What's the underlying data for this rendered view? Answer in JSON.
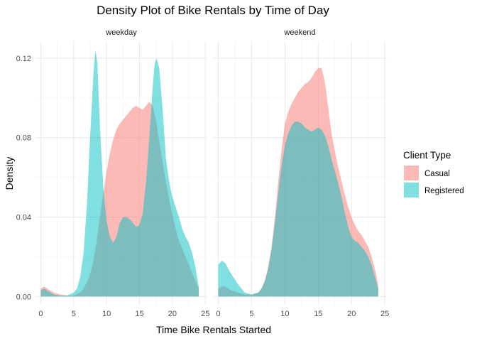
{
  "chart_data": {
    "type": "area",
    "title": "Density Plot of Bike Rentals by Time of Day",
    "xlabel": "Time Bike Rentals Started",
    "ylabel": "Density",
    "xlim": [
      -0.8,
      25.3
    ],
    "ylim": [
      -0.0045,
      0.1285
    ],
    "x_ticks": [
      0,
      5,
      10,
      15,
      20,
      25
    ],
    "y_ticks": [
      0.0,
      0.04,
      0.08,
      0.12
    ],
    "y_tick_labels": [
      "0.00",
      "0.04",
      "0.08",
      "0.12"
    ],
    "grid": true,
    "legend": {
      "title": "Client Type",
      "position": "right",
      "entries": [
        {
          "name": "Casual",
          "color": "#F8766D"
        },
        {
          "name": "Registered",
          "color": "#00BFC4"
        }
      ]
    },
    "facets": [
      {
        "label": "weekday",
        "series": [
          {
            "name": "Casual",
            "x": [
              0,
              0.5,
              1,
              1.5,
              2,
              3,
              4,
              5,
              6,
              6.5,
              7,
              7.5,
              8,
              8.5,
              9,
              9.5,
              10,
              10.5,
              11,
              11.5,
              12,
              12.5,
              13,
              13.5,
              14,
              14.5,
              15,
              15.5,
              16,
              16.5,
              17,
              17.5,
              18,
              18.5,
              19,
              19.5,
              20,
              20.5,
              21,
              21.5,
              22,
              22.5,
              23,
              23.5,
              24
            ],
            "values": [
              0.004,
              0.005,
              0.004,
              0.003,
              0.002,
              0.001,
              0.0005,
              0.0005,
              0.002,
              0.004,
              0.007,
              0.011,
              0.018,
              0.028,
              0.04,
              0.052,
              0.063,
              0.072,
              0.079,
              0.084,
              0.087,
              0.089,
              0.091,
              0.093,
              0.095,
              0.096,
              0.095,
              0.094,
              0.096,
              0.098,
              0.096,
              0.089,
              0.078,
              0.068,
              0.058,
              0.049,
              0.041,
              0.034,
              0.028,
              0.024,
              0.02,
              0.016,
              0.012,
              0.008,
              0.004
            ]
          },
          {
            "name": "Registered",
            "x": [
              0,
              0.5,
              1,
              1.5,
              2,
              3,
              4,
              5,
              5.5,
              6,
              6.5,
              7,
              7.5,
              8,
              8.3,
              8.6,
              9,
              9.5,
              10,
              10.5,
              11,
              11.5,
              12,
              12.5,
              13,
              13.5,
              14,
              14.5,
              15,
              15.5,
              16,
              16.5,
              17,
              17.3,
              17.6,
              18,
              18.5,
              19,
              19.5,
              20,
              20.5,
              21,
              21.5,
              22,
              22.5,
              23,
              23.5,
              24
            ],
            "values": [
              0.003,
              0.004,
              0.003,
              0.002,
              0.001,
              0.0005,
              0.0005,
              0.002,
              0.004,
              0.01,
              0.022,
              0.045,
              0.08,
              0.112,
              0.124,
              0.118,
              0.085,
              0.055,
              0.038,
              0.03,
              0.027,
              0.03,
              0.037,
              0.04,
              0.04,
              0.039,
              0.037,
              0.035,
              0.036,
              0.042,
              0.058,
              0.08,
              0.105,
              0.117,
              0.12,
              0.115,
              0.095,
              0.07,
              0.058,
              0.05,
              0.045,
              0.04,
              0.034,
              0.03,
              0.027,
              0.022,
              0.015,
              0.005
            ]
          }
        ]
      },
      {
        "label": "weekend",
        "series": [
          {
            "name": "Casual",
            "x": [
              0,
              0.5,
              1,
              1.5,
              2,
              3,
              4,
              5,
              6,
              6.5,
              7,
              7.5,
              8,
              8.5,
              9,
              9.5,
              10,
              10.5,
              11,
              11.5,
              12,
              12.5,
              13,
              13.5,
              14,
              14.5,
              15,
              15.5,
              16,
              16.5,
              17,
              17.5,
              18,
              18.5,
              19,
              19.5,
              20,
              20.5,
              21,
              21.5,
              22,
              22.5,
              23,
              23.5,
              24
            ],
            "values": [
              0.004,
              0.005,
              0.005,
              0.004,
              0.003,
              0.002,
              0.001,
              0.001,
              0.002,
              0.004,
              0.008,
              0.015,
              0.025,
              0.04,
              0.058,
              0.074,
              0.087,
              0.093,
              0.097,
              0.1,
              0.103,
              0.105,
              0.107,
              0.108,
              0.11,
              0.113,
              0.115,
              0.115,
              0.108,
              0.095,
              0.082,
              0.073,
              0.065,
              0.058,
              0.051,
              0.045,
              0.04,
              0.036,
              0.033,
              0.031,
              0.028,
              0.025,
              0.02,
              0.014,
              0.006
            ]
          },
          {
            "name": "Registered",
            "x": [
              0,
              0.5,
              1,
              1.5,
              2,
              3,
              4,
              5,
              6,
              6.5,
              7,
              7.5,
              8,
              8.5,
              9,
              9.5,
              10,
              10.5,
              11,
              11.5,
              12,
              12.5,
              13,
              13.5,
              14,
              14.5,
              15,
              15.5,
              16,
              16.5,
              17,
              17.5,
              18,
              18.5,
              19,
              19.5,
              20,
              20.5,
              21,
              21.5,
              22,
              22.5,
              23,
              23.5,
              24
            ],
            "values": [
              0.016,
              0.018,
              0.017,
              0.014,
              0.011,
              0.006,
              0.002,
              0.001,
              0.002,
              0.004,
              0.008,
              0.014,
              0.024,
              0.037,
              0.052,
              0.066,
              0.076,
              0.082,
              0.086,
              0.088,
              0.088,
              0.087,
              0.085,
              0.084,
              0.083,
              0.084,
              0.085,
              0.084,
              0.081,
              0.076,
              0.069,
              0.063,
              0.057,
              0.05,
              0.042,
              0.035,
              0.03,
              0.028,
              0.027,
              0.025,
              0.023,
              0.02,
              0.016,
              0.01,
              0.004
            ]
          }
        ]
      }
    ]
  }
}
